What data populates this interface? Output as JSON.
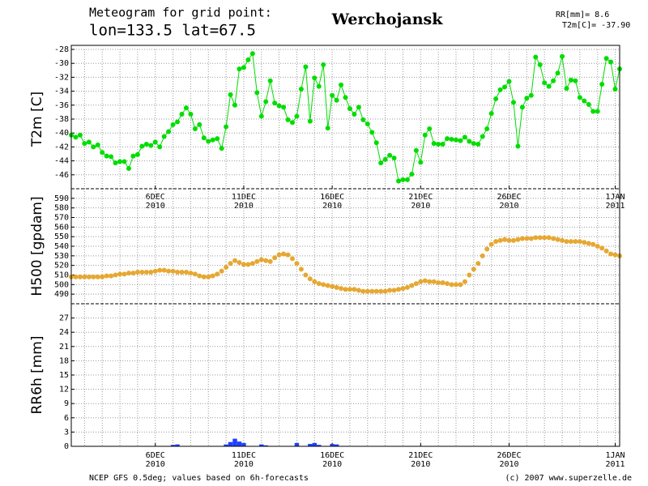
{
  "header": {
    "line1": "Meteogram for grid point:",
    "line2": "lon=133.5 lat=67.5",
    "station": "Werchojansk",
    "rr_sum": "RR[mm]= 8.6",
    "t2m_now": "T2m[C]= -37.90"
  },
  "footer": {
    "source": "NCEP GFS 0.5deg; values based on 6h-forecasts",
    "copyright": "(c) 2007 www.superzelle.de"
  },
  "chart_data": [
    {
      "type": "line",
      "ylabel": "T2m [C]",
      "color": "#00dd00",
      "ylim": [
        -48,
        -28
      ],
      "yticks": [
        -46,
        -44,
        -42,
        -40,
        -38,
        -36,
        -34,
        -32,
        -30,
        -28
      ],
      "grid": true,
      "categories": [
        null,
        null,
        null,
        null,
        null,
        null,
        null,
        null,
        null,
        null,
        null,
        null,
        null,
        null,
        null,
        null,
        null,
        null,
        null,
        "6DEC",
        null,
        null,
        null,
        null,
        null,
        null,
        null,
        null,
        null,
        null,
        null,
        null,
        null,
        null,
        null,
        null,
        null,
        null,
        null,
        "11DEC",
        null,
        null,
        null,
        null,
        null,
        null,
        null,
        null,
        null,
        null,
        null,
        null,
        null,
        null,
        null,
        null,
        null,
        null,
        null,
        "16DEC",
        null,
        null,
        null,
        null,
        null,
        null,
        null,
        null,
        null,
        null,
        null,
        null,
        null,
        null,
        null,
        null,
        null,
        null,
        null,
        "21DEC",
        null,
        null,
        null,
        null,
        null,
        null,
        null,
        null,
        null,
        null,
        null,
        null,
        null,
        null,
        null,
        null,
        null,
        null,
        null,
        "26DEC",
        null,
        null,
        null,
        null,
        null,
        null,
        null,
        null,
        null,
        null,
        null,
        null,
        null,
        null,
        null,
        null,
        null,
        null,
        null,
        null,
        null,
        null,
        null,
        "1JAN",
        null
      ],
      "category_years": [
        null,
        null,
        null,
        null,
        null,
        null,
        null,
        null,
        null,
        null,
        null,
        null,
        null,
        null,
        null,
        null,
        null,
        null,
        null,
        "2010",
        null,
        null,
        null,
        null,
        null,
        null,
        null,
        null,
        null,
        null,
        null,
        null,
        null,
        null,
        null,
        null,
        null,
        null,
        null,
        "2010",
        null,
        null,
        null,
        null,
        null,
        null,
        null,
        null,
        null,
        null,
        null,
        null,
        null,
        null,
        null,
        null,
        null,
        null,
        null,
        "2010",
        null,
        null,
        null,
        null,
        null,
        null,
        null,
        null,
        null,
        null,
        null,
        null,
        null,
        null,
        null,
        null,
        null,
        null,
        null,
        "2010",
        null,
        null,
        null,
        null,
        null,
        null,
        null,
        null,
        null,
        null,
        null,
        null,
        null,
        null,
        null,
        null,
        null,
        null,
        null,
        "2010",
        null,
        null,
        null,
        null,
        null,
        null,
        null,
        null,
        null,
        null,
        null,
        null,
        null,
        null,
        null,
        null,
        null,
        null,
        null,
        null,
        null,
        null,
        null,
        "2011",
        null
      ],
      "values": [
        -40.3,
        -40.6,
        -40.3,
        -41.5,
        -41.3,
        -42,
        -41.7,
        -42.8,
        -43.3,
        -43.4,
        -44.3,
        -44.1,
        -44.1,
        -45.1,
        -43.3,
        -43.1,
        -41.9,
        -41.6,
        -41.8,
        -41.3,
        -42,
        -40.5,
        -39.8,
        -38.8,
        -38.4,
        -37.3,
        -36.4,
        -37.3,
        -39.4,
        -38.8,
        -40.7,
        -41.2,
        -41,
        -40.8,
        -42.2,
        -39.1,
        -34.5,
        -36,
        -30.8,
        -30.6,
        -29.5,
        -28.6,
        -34.2,
        -37.6,
        -35.5,
        -32.5,
        -35.7,
        -36.1,
        -36.3,
        -38.1,
        -38.5,
        -37.6,
        -33.7,
        -30.5,
        -38.3,
        -32.1,
        -33.3,
        -30.2,
        -39.3,
        -34.6,
        -35.3,
        -33.1,
        -34.9,
        -36.5,
        -37.3,
        -36.3,
        -38.1,
        -38.7,
        -39.9,
        -41.4,
        -44.3,
        -43.8,
        -43.2,
        -43.6,
        -46.9,
        -46.7,
        -46.7,
        -45.9,
        -42.5,
        -44.2,
        -40.3,
        -39.4,
        -41.5,
        -41.6,
        -41.6,
        -40.8,
        -40.9,
        -41,
        -41.1,
        -40.6,
        -41.2,
        -41.5,
        -41.6,
        -40.5,
        -39.4,
        -37.2,
        -35.1,
        -33.8,
        -33.4,
        -32.6,
        -35.6,
        -41.9,
        -36.3,
        -35,
        -34.6,
        -29.1,
        -30.2,
        -32.8,
        -33.3,
        -32.5,
        -31.4,
        -29,
        -33.6,
        -32.4,
        -32.5,
        -34.9,
        -35.4,
        -35.9,
        -36.9,
        -36.9,
        -33,
        -29.3,
        -29.8,
        -33.7,
        -30.8
      ]
    },
    {
      "type": "scatter",
      "ylabel": "H500 [gpdam]",
      "color": "#e6a832",
      "ylim": [
        480,
        600
      ],
      "yticks": [
        490,
        500,
        510,
        520,
        530,
        540,
        550,
        560,
        570,
        580,
        590
      ],
      "grid": true,
      "values": [
        508,
        508,
        508,
        508,
        508,
        508,
        508,
        508,
        509,
        509,
        510,
        511,
        511,
        512,
        512,
        513,
        513,
        513,
        513,
        514,
        515,
        515,
        514,
        514,
        513,
        513,
        513,
        512,
        511,
        509,
        508,
        508,
        509,
        511,
        514,
        518,
        522,
        525,
        523,
        521,
        521,
        522,
        524,
        526,
        525,
        524,
        528,
        531,
        532,
        531,
        527,
        522,
        516,
        510,
        506,
        503,
        501,
        500,
        499,
        498,
        497,
        496,
        495,
        495,
        495,
        494,
        493,
        493,
        493,
        493,
        493,
        493,
        494,
        494,
        495,
        496,
        497,
        499,
        501,
        503,
        504,
        503,
        503,
        502,
        502,
        501,
        500,
        500,
        500,
        503,
        510,
        516,
        522,
        530,
        537,
        542,
        545,
        546,
        547,
        546,
        546,
        547,
        548,
        548,
        548,
        549,
        549,
        549,
        549,
        548,
        547,
        546,
        545,
        545,
        545,
        545,
        544,
        543,
        542,
        540,
        538,
        535,
        532,
        531,
        530
      ]
    },
    {
      "type": "bar",
      "ylabel": "RR6h [mm]",
      "color": "#2040ff",
      "ylim": [
        0,
        30
      ],
      "yticks": [
        0,
        3,
        6,
        9,
        12,
        15,
        18,
        21,
        24,
        27
      ],
      "grid": true,
      "categories": [
        null,
        null,
        null,
        null,
        null,
        null,
        null,
        null,
        null,
        null,
        null,
        null,
        null,
        null,
        null,
        null,
        null,
        null,
        null,
        "6DEC",
        null,
        null,
        null,
        null,
        null,
        null,
        null,
        null,
        null,
        null,
        null,
        null,
        null,
        null,
        null,
        null,
        null,
        null,
        null,
        "11DEC",
        null,
        null,
        null,
        null,
        null,
        null,
        null,
        null,
        null,
        null,
        null,
        null,
        null,
        null,
        null,
        null,
        null,
        null,
        null,
        "16DEC",
        null,
        null,
        null,
        null,
        null,
        null,
        null,
        null,
        null,
        null,
        null,
        null,
        null,
        null,
        null,
        null,
        null,
        null,
        null,
        "21DEC",
        null,
        null,
        null,
        null,
        null,
        null,
        null,
        null,
        null,
        null,
        null,
        null,
        null,
        null,
        null,
        null,
        null,
        null,
        null,
        "26DEC",
        null,
        null,
        null,
        null,
        null,
        null,
        null,
        null,
        null,
        null,
        null,
        null,
        null,
        null,
        null,
        null,
        null,
        null,
        null,
        null,
        null,
        null,
        null,
        "1JAN",
        null
      ],
      "category_years": [
        null,
        null,
        null,
        null,
        null,
        null,
        null,
        null,
        null,
        null,
        null,
        null,
        null,
        null,
        null,
        null,
        null,
        null,
        null,
        "2010",
        null,
        null,
        null,
        null,
        null,
        null,
        null,
        null,
        null,
        null,
        null,
        null,
        null,
        null,
        null,
        null,
        null,
        null,
        null,
        "2010",
        null,
        null,
        null,
        null,
        null,
        null,
        null,
        null,
        null,
        null,
        null,
        null,
        null,
        null,
        null,
        null,
        null,
        null,
        null,
        "2010",
        null,
        null,
        null,
        null,
        null,
        null,
        null,
        null,
        null,
        null,
        null,
        null,
        null,
        null,
        null,
        null,
        null,
        null,
        null,
        "2010",
        null,
        null,
        null,
        null,
        null,
        null,
        null,
        null,
        null,
        null,
        null,
        null,
        null,
        null,
        null,
        null,
        null,
        null,
        null,
        "2010",
        null,
        null,
        null,
        null,
        null,
        null,
        null,
        null,
        null,
        null,
        null,
        null,
        null,
        null,
        null,
        null,
        null,
        null,
        null,
        null,
        null,
        null,
        null,
        "2011",
        null
      ],
      "values": [
        0,
        0,
        0,
        0,
        0,
        0,
        0,
        0,
        0,
        0,
        0,
        0,
        0,
        0,
        0,
        0,
        0,
        0,
        0,
        0,
        0,
        0,
        0,
        0.3,
        0.4,
        0,
        0,
        0,
        0,
        0,
        0,
        0,
        0,
        0,
        0,
        0.4,
        0.9,
        1.6,
        1,
        0.7,
        0,
        0,
        0,
        0.4,
        0.2,
        0,
        0,
        0,
        0,
        0,
        0,
        0.7,
        0,
        0,
        0.5,
        0.7,
        0.3,
        0,
        0,
        0.5,
        0.4,
        0,
        0,
        0,
        0,
        0,
        0,
        0,
        0,
        0,
        0,
        0,
        0,
        0,
        0,
        0,
        0,
        0,
        0,
        0,
        0,
        0,
        0,
        0,
        0,
        0,
        0,
        0,
        0,
        0,
        0,
        0,
        0,
        0,
        0,
        0,
        0,
        0,
        0,
        0,
        0,
        0,
        0,
        0,
        0,
        0,
        0,
        0,
        0,
        0,
        0,
        0,
        0,
        0,
        0,
        0,
        0,
        0,
        0,
        0,
        0,
        0,
        0,
        0,
        0
      ]
    }
  ]
}
